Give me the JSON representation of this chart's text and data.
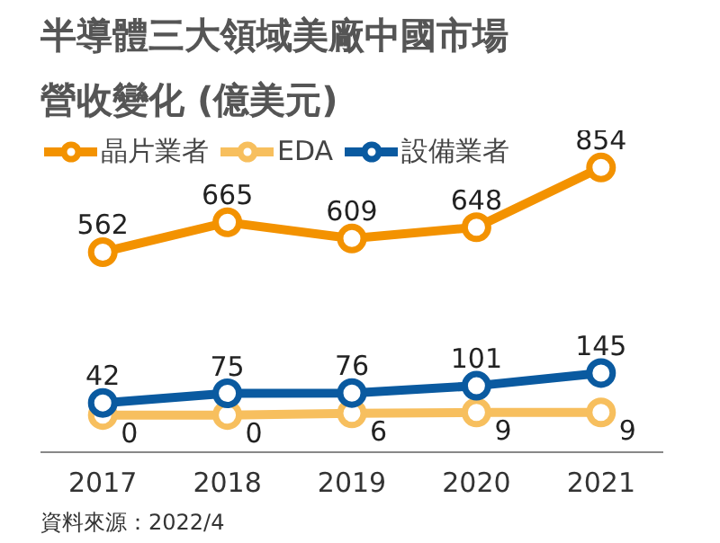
{
  "chart_data": {
    "type": "line",
    "title": "半導體三大領域美廠中國市場",
    "subtitle": "營收變化",
    "ylabel": "(億美元)",
    "x": [
      2017,
      2018,
      2019,
      2020,
      2021
    ],
    "xlim": [
      2016.5,
      2021.5
    ],
    "xticks": [
      2017,
      2018,
      2019,
      2020,
      2021
    ],
    "tick_labels": "x",
    "series": [
      {
        "name": "晶片業者",
        "color": "#f39200",
        "values": [
          562,
          665,
          609,
          648,
          854
        ]
      },
      {
        "name": "EDA",
        "color": "#f7bf5e",
        "values": [
          0,
          0,
          6,
          9,
          9
        ]
      },
      {
        "name": "設備業者",
        "color": "#0a5aa0",
        "values": [
          42,
          75,
          76,
          101,
          145
        ]
      }
    ],
    "marker": "circle",
    "line_style": "solid",
    "data_labels": true,
    "legend": "top",
    "grid": false,
    "annotations": [
      "資料來源：2022/4"
    ]
  }
}
